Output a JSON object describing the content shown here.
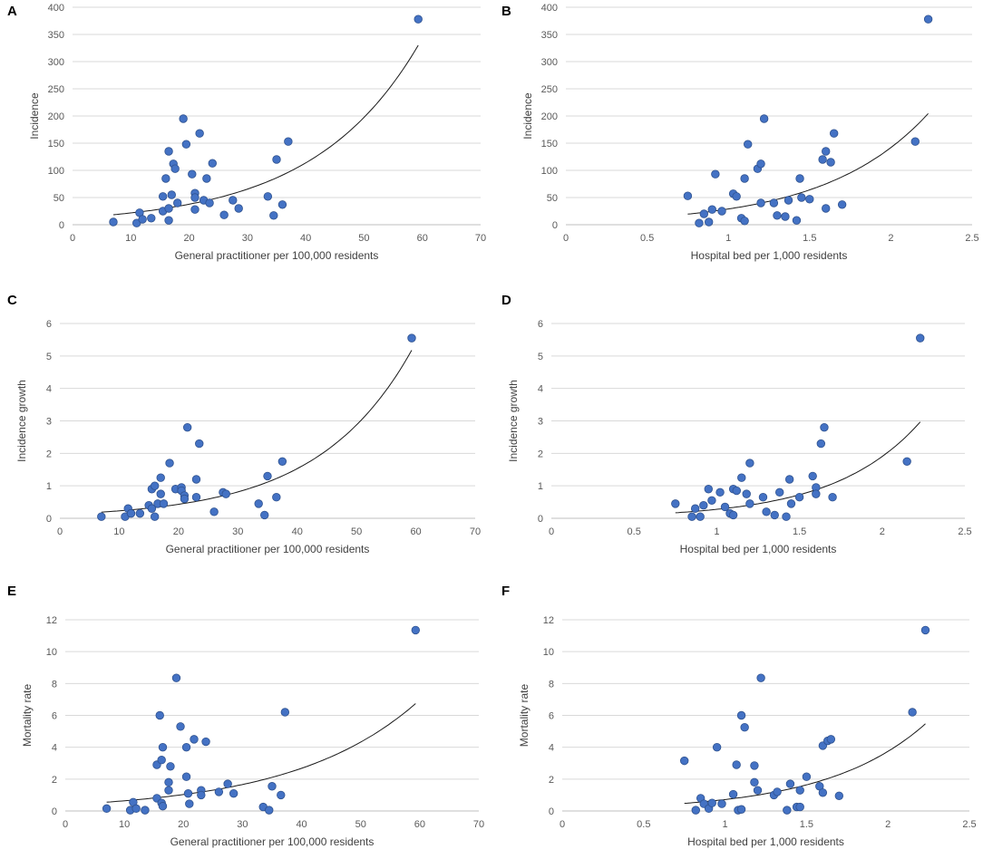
{
  "figure": {
    "panels": [
      "A",
      "B",
      "C",
      "D",
      "E",
      "F"
    ]
  },
  "chart_data": [
    {
      "id": "A",
      "type": "scatter",
      "xlabel": "General practitioner per 100,000 residents",
      "ylabel": "Incidence",
      "xlim": [
        0,
        70
      ],
      "ylim": [
        0,
        400
      ],
      "xticks": [
        0,
        10,
        20,
        30,
        40,
        50,
        60,
        70
      ],
      "yticks": [
        0,
        50,
        100,
        150,
        200,
        250,
        300,
        350,
        400
      ],
      "xtick_labels": [
        "0",
        "10",
        "20",
        "30",
        "40",
        "50",
        "60",
        "70"
      ],
      "ytick_labels": [
        "0",
        "50",
        "100",
        "150",
        "200",
        "250",
        "300",
        "350",
        "400"
      ],
      "trend": {
        "type": "exponential",
        "a": 12.5,
        "b": 0.0552,
        "x_range": [
          7,
          59.3
        ]
      },
      "points": [
        [
          7,
          5
        ],
        [
          11,
          3
        ],
        [
          11.5,
          22
        ],
        [
          12,
          10
        ],
        [
          13.5,
          12
        ],
        [
          15.5,
          52
        ],
        [
          15.5,
          25
        ],
        [
          16,
          85
        ],
        [
          16.5,
          30
        ],
        [
          16.5,
          8
        ],
        [
          16.5,
          135
        ],
        [
          17,
          55
        ],
        [
          17.3,
          112
        ],
        [
          17.6,
          103
        ],
        [
          18,
          40
        ],
        [
          19,
          195
        ],
        [
          19.5,
          148
        ],
        [
          20.5,
          93
        ],
        [
          21,
          58
        ],
        [
          21,
          50
        ],
        [
          21,
          28
        ],
        [
          21.8,
          168
        ],
        [
          22.5,
          45
        ],
        [
          23,
          85
        ],
        [
          23.5,
          40
        ],
        [
          24,
          113
        ],
        [
          26,
          18
        ],
        [
          27.5,
          45
        ],
        [
          28.5,
          30
        ],
        [
          33.5,
          52
        ],
        [
          34.5,
          17
        ],
        [
          35,
          120
        ],
        [
          36,
          37
        ],
        [
          37,
          153
        ],
        [
          59.3,
          378
        ]
      ]
    },
    {
      "id": "B",
      "type": "scatter",
      "xlabel": "Hospital bed per 1,000 residents",
      "ylabel": "Incidence",
      "xlim": [
        0,
        2.5
      ],
      "ylim": [
        0,
        400
      ],
      "xticks": [
        0,
        0.5,
        1,
        1.5,
        2,
        2.5
      ],
      "yticks": [
        0,
        50,
        100,
        150,
        200,
        250,
        300,
        350,
        400
      ],
      "xtick_labels": [
        "0",
        "0.5",
        "1",
        "1.5",
        "2",
        "2.5"
      ],
      "ytick_labels": [
        "0",
        "50",
        "100",
        "150",
        "200",
        "250",
        "300",
        "350",
        "400"
      ],
      "trend": {
        "type": "exponential",
        "a": 5.9,
        "b": 1.59,
        "x_range": [
          0.75,
          2.23
        ]
      },
      "points": [
        [
          0.75,
          53
        ],
        [
          0.82,
          3
        ],
        [
          0.85,
          20
        ],
        [
          0.88,
          5
        ],
        [
          0.9,
          28
        ],
        [
          0.92,
          93
        ],
        [
          0.96,
          25
        ],
        [
          1.03,
          57
        ],
        [
          1.05,
          52
        ],
        [
          1.08,
          12
        ],
        [
          1.1,
          7
        ],
        [
          1.1,
          85
        ],
        [
          1.12,
          148
        ],
        [
          1.18,
          103
        ],
        [
          1.2,
          112
        ],
        [
          1.2,
          40
        ],
        [
          1.22,
          195
        ],
        [
          1.28,
          40
        ],
        [
          1.3,
          17
        ],
        [
          1.35,
          15
        ],
        [
          1.37,
          45
        ],
        [
          1.42,
          8
        ],
        [
          1.44,
          85
        ],
        [
          1.45,
          50
        ],
        [
          1.5,
          47
        ],
        [
          1.58,
          120
        ],
        [
          1.6,
          135
        ],
        [
          1.6,
          30
        ],
        [
          1.63,
          115
        ],
        [
          1.65,
          168
        ],
        [
          1.7,
          37
        ],
        [
          2.15,
          153
        ],
        [
          2.23,
          378
        ]
      ]
    },
    {
      "id": "C",
      "type": "scatter",
      "xlabel": "General practitioner per 100,000 residents",
      "ylabel": "Incidence growth",
      "xlim": [
        0,
        70
      ],
      "ylim": [
        0,
        6
      ],
      "xticks": [
        0,
        10,
        20,
        30,
        40,
        50,
        60,
        70
      ],
      "yticks": [
        0,
        1,
        2,
        3,
        4,
        5,
        6
      ],
      "xtick_labels": [
        "0",
        "10",
        "20",
        "30",
        "40",
        "50",
        "60",
        "70"
      ],
      "ytick_labels": [
        "0",
        "1",
        "2",
        "3",
        "4",
        "5",
        "6"
      ],
      "trend": {
        "type": "exponential",
        "a": 0.122,
        "b": 0.0632,
        "x_range": [
          7,
          59.3
        ]
      },
      "points": [
        [
          7,
          0.05
        ],
        [
          11,
          0.05
        ],
        [
          11.5,
          0.3
        ],
        [
          12,
          0.15
        ],
        [
          13.5,
          0.15
        ],
        [
          15,
          0.4
        ],
        [
          15.5,
          0.9
        ],
        [
          15.5,
          0.3
        ],
        [
          16,
          0.05
        ],
        [
          16,
          1.0
        ],
        [
          16.5,
          0.45
        ],
        [
          17,
          0.75
        ],
        [
          17,
          1.25
        ],
        [
          17.5,
          0.45
        ],
        [
          18.5,
          1.7
        ],
        [
          19.5,
          0.9
        ],
        [
          20.5,
          0.95
        ],
        [
          20.5,
          0.85
        ],
        [
          21,
          0.7
        ],
        [
          21,
          0.6
        ],
        [
          21.5,
          2.8
        ],
        [
          23,
          0.65
        ],
        [
          23,
          1.2
        ],
        [
          23.5,
          2.3
        ],
        [
          26,
          0.2
        ],
        [
          27.5,
          0.8
        ],
        [
          28,
          0.75
        ],
        [
          33.5,
          0.45
        ],
        [
          34.5,
          0.1
        ],
        [
          35,
          1.3
        ],
        [
          36.5,
          0.65
        ],
        [
          37.5,
          1.75
        ],
        [
          59.3,
          5.55
        ]
      ]
    },
    {
      "id": "D",
      "type": "scatter",
      "xlabel": "Hospital bed per 1,000 residents",
      "ylabel": "Incidence growth",
      "xlim": [
        0,
        2.5
      ],
      "ylim": [
        0,
        6
      ],
      "xticks": [
        0,
        0.5,
        1,
        1.5,
        2,
        2.5
      ],
      "yticks": [
        0,
        1,
        2,
        3,
        4,
        5,
        6
      ],
      "xtick_labels": [
        "0",
        "0.5",
        "1",
        "1.5",
        "2",
        "2.5"
      ],
      "ytick_labels": [
        "0",
        "1",
        "2",
        "3",
        "4",
        "5",
        "6"
      ],
      "trend": {
        "type": "exponential",
        "a": 0.0401,
        "b": 1.93,
        "x_range": [
          0.75,
          2.23
        ]
      },
      "points": [
        [
          0.75,
          0.45
        ],
        [
          0.85,
          0.05
        ],
        [
          0.87,
          0.3
        ],
        [
          0.9,
          0.05
        ],
        [
          0.92,
          0.4
        ],
        [
          0.95,
          0.9
        ],
        [
          0.97,
          0.55
        ],
        [
          1.02,
          0.8
        ],
        [
          1.05,
          0.35
        ],
        [
          1.08,
          0.15
        ],
        [
          1.1,
          0.1
        ],
        [
          1.1,
          0.9
        ],
        [
          1.12,
          0.85
        ],
        [
          1.15,
          1.25
        ],
        [
          1.18,
          0.75
        ],
        [
          1.2,
          0.45
        ],
        [
          1.2,
          1.7
        ],
        [
          1.28,
          0.65
        ],
        [
          1.3,
          0.2
        ],
        [
          1.35,
          0.1
        ],
        [
          1.38,
          0.8
        ],
        [
          1.42,
          0.05
        ],
        [
          1.44,
          1.2
        ],
        [
          1.45,
          0.45
        ],
        [
          1.5,
          0.65
        ],
        [
          1.58,
          1.3
        ],
        [
          1.6,
          0.95
        ],
        [
          1.6,
          0.75
        ],
        [
          1.63,
          2.3
        ],
        [
          1.65,
          2.8
        ],
        [
          1.7,
          0.65
        ],
        [
          2.15,
          1.75
        ],
        [
          2.23,
          5.55
        ]
      ]
    },
    {
      "id": "E",
      "type": "scatter",
      "xlabel": "General practitioner per 100,000 residents",
      "ylabel": "Mortality rate",
      "xlim": [
        0,
        70
      ],
      "ylim": [
        0,
        12
      ],
      "xticks": [
        0,
        10,
        20,
        30,
        40,
        50,
        60,
        70
      ],
      "yticks": [
        0,
        2,
        4,
        6,
        8,
        10,
        12
      ],
      "xtick_labels": [
        "0",
        "10",
        "20",
        "30",
        "40",
        "50",
        "60",
        "70"
      ],
      "ytick_labels": [
        "0",
        "2",
        "4",
        "6",
        "8",
        "10",
        "12"
      ],
      "trend": {
        "type": "exponential",
        "a": 0.396,
        "b": 0.0478,
        "x_range": [
          7,
          59.3
        ]
      },
      "points": [
        [
          7,
          0.15
        ],
        [
          11,
          0.05
        ],
        [
          11.5,
          0.55
        ],
        [
          12,
          0.15
        ],
        [
          13.5,
          0.05
        ],
        [
          15.5,
          0.8
        ],
        [
          15.5,
          2.9
        ],
        [
          16,
          6.0
        ],
        [
          16.3,
          3.2
        ],
        [
          16.3,
          0.5
        ],
        [
          16.5,
          4.0
        ],
        [
          16.5,
          0.3
        ],
        [
          17.5,
          1.8
        ],
        [
          17.5,
          1.3
        ],
        [
          17.8,
          2.8
        ],
        [
          18.8,
          8.35
        ],
        [
          19.5,
          5.3
        ],
        [
          20.5,
          4.0
        ],
        [
          20.5,
          2.15
        ],
        [
          20.8,
          1.1
        ],
        [
          21,
          0.45
        ],
        [
          21.8,
          4.5
        ],
        [
          23,
          1.3
        ],
        [
          23,
          1.0
        ],
        [
          23.8,
          4.35
        ],
        [
          26,
          1.2
        ],
        [
          27.5,
          1.7
        ],
        [
          28.5,
          1.1
        ],
        [
          33.5,
          0.25
        ],
        [
          34.5,
          0.05
        ],
        [
          35,
          1.55
        ],
        [
          36.5,
          1.0
        ],
        [
          37.2,
          6.2
        ],
        [
          59.3,
          11.35
        ]
      ]
    },
    {
      "id": "F",
      "type": "scatter",
      "xlabel": "Hospital bed per 1,000 residents",
      "ylabel": "Mortality rate",
      "xlim": [
        0,
        2.5
      ],
      "ylim": [
        0,
        12
      ],
      "xticks": [
        0,
        0.5,
        1,
        1.5,
        2,
        2.5
      ],
      "yticks": [
        0,
        2,
        4,
        6,
        8,
        10,
        12
      ],
      "xtick_labels": [
        "0",
        "0.5",
        "1",
        "1.5",
        "2",
        "2.5"
      ],
      "ytick_labels": [
        "0",
        "2",
        "4",
        "6",
        "8",
        "10",
        "12"
      ],
      "trend": {
        "type": "exponential",
        "a": 0.138,
        "b": 1.65,
        "x_range": [
          0.75,
          2.23
        ]
      },
      "points": [
        [
          0.75,
          3.15
        ],
        [
          0.82,
          0.05
        ],
        [
          0.85,
          0.8
        ],
        [
          0.87,
          0.45
        ],
        [
          0.9,
          0.15
        ],
        [
          0.92,
          0.5
        ],
        [
          0.95,
          4.0
        ],
        [
          0.98,
          0.45
        ],
        [
          1.05,
          1.05
        ],
        [
          1.07,
          2.9
        ],
        [
          1.08,
          0.05
        ],
        [
          1.1,
          0.1
        ],
        [
          1.1,
          6.0
        ],
        [
          1.12,
          5.25
        ],
        [
          1.18,
          2.85
        ],
        [
          1.18,
          1.8
        ],
        [
          1.2,
          1.3
        ],
        [
          1.22,
          8.35
        ],
        [
          1.3,
          1.0
        ],
        [
          1.32,
          1.2
        ],
        [
          1.38,
          0.05
        ],
        [
          1.4,
          1.7
        ],
        [
          1.44,
          0.25
        ],
        [
          1.46,
          0.25
        ],
        [
          1.46,
          1.3
        ],
        [
          1.5,
          2.15
        ],
        [
          1.58,
          1.55
        ],
        [
          1.6,
          1.15
        ],
        [
          1.6,
          4.1
        ],
        [
          1.63,
          4.4
        ],
        [
          1.65,
          4.5
        ],
        [
          1.7,
          0.95
        ],
        [
          2.15,
          6.2
        ],
        [
          2.23,
          11.35
        ]
      ]
    }
  ]
}
